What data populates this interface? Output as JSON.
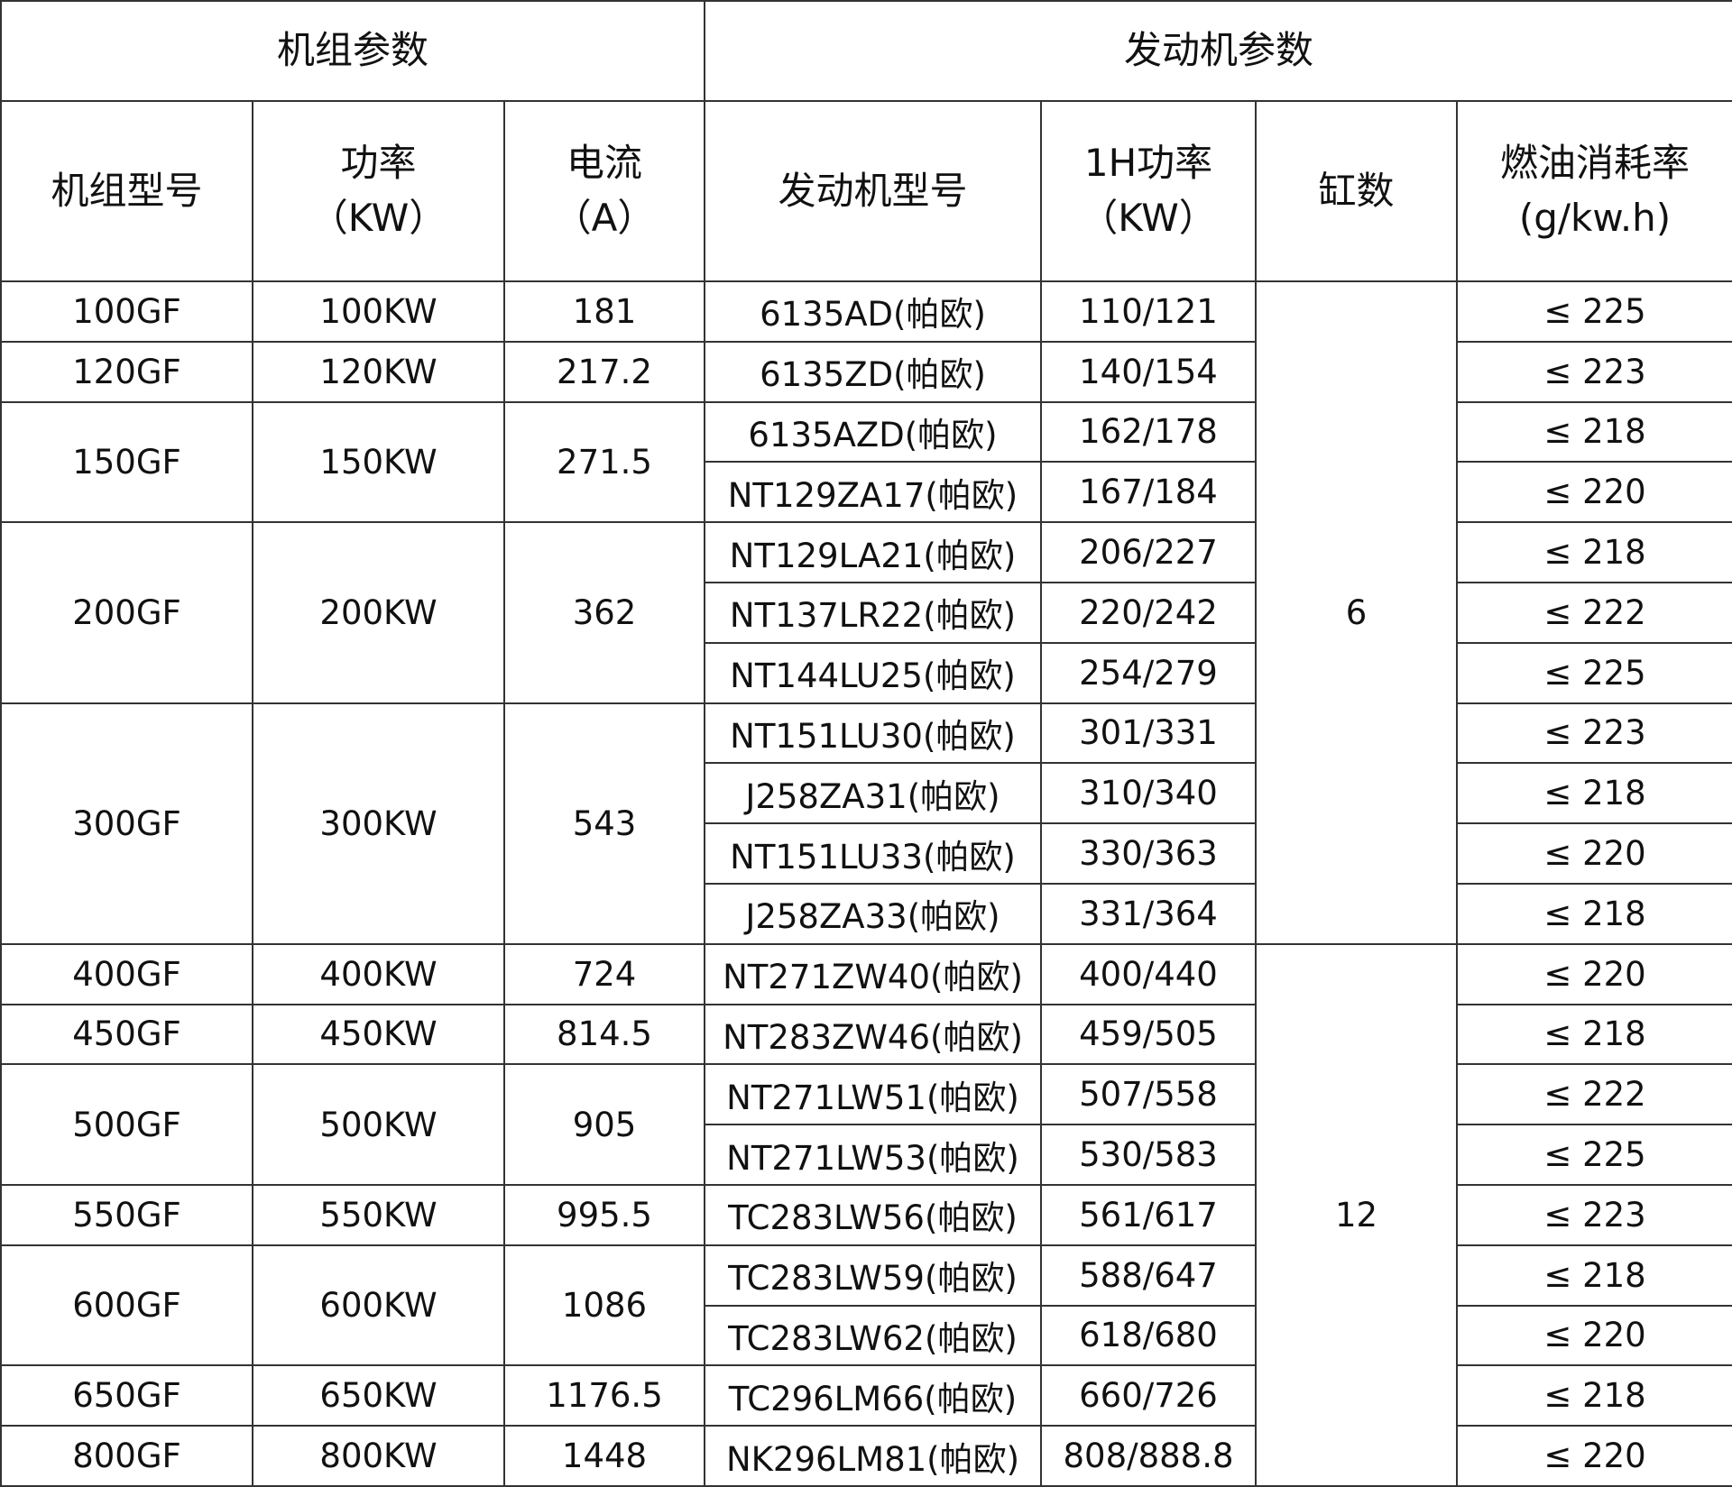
{
  "group_headers": {
    "unit_params": "机组参数",
    "engine_params": "发动机参数"
  },
  "columns": {
    "unit_model": "机组型号",
    "power": "功率\n（KW）",
    "current": "电流\n（A）",
    "engine_model": "发动机型号",
    "power_1h": "1H功率\n（KW）",
    "cylinders": "缸数",
    "fuel_rate": "燃油消耗率\n(g/kw.h)"
  },
  "units": [
    {
      "model": "100GF",
      "power": "100KW",
      "current": "181",
      "rows": 1
    },
    {
      "model": "120GF",
      "power": "120KW",
      "current": "217.2",
      "rows": 1
    },
    {
      "model": "150GF",
      "power": "150KW",
      "current": "271.5",
      "rows": 2
    },
    {
      "model": "200GF",
      "power": "200KW",
      "current": "362",
      "rows": 3
    },
    {
      "model": "300GF",
      "power": "300KW",
      "current": "543",
      "rows": 4
    },
    {
      "model": "400GF",
      "power": "400KW",
      "current": "724",
      "rows": 1
    },
    {
      "model": "450GF",
      "power": "450KW",
      "current": "814.5",
      "rows": 1
    },
    {
      "model": "500GF",
      "power": "500KW",
      "current": "905",
      "rows": 2
    },
    {
      "model": "550GF",
      "power": "550KW",
      "current": "995.5",
      "rows": 1
    },
    {
      "model": "600GF",
      "power": "600KW",
      "current": "1086",
      "rows": 2
    },
    {
      "model": "650GF",
      "power": "650KW",
      "current": "1176.5",
      "rows": 1
    },
    {
      "model": "800GF",
      "power": "800KW",
      "current": "1448",
      "rows": 1
    }
  ],
  "cylinder_groups": [
    {
      "value": "6",
      "rows": 11
    },
    {
      "value": "12",
      "rows": 9
    }
  ],
  "engines": [
    {
      "model": "6135AD(帕欧)",
      "power_1h": "110/121",
      "fuel": "≤ 225"
    },
    {
      "model": "6135ZD(帕欧)",
      "power_1h": "140/154",
      "fuel": "≤ 223"
    },
    {
      "model": "6135AZD(帕欧)",
      "power_1h": "162/178",
      "fuel": "≤ 218"
    },
    {
      "model": "NT129ZA17(帕欧)",
      "power_1h": "167/184",
      "fuel": "≤ 220"
    },
    {
      "model": "NT129LA21(帕欧)",
      "power_1h": "206/227",
      "fuel": "≤ 218"
    },
    {
      "model": "NT137LR22(帕欧)",
      "power_1h": "220/242",
      "fuel": "≤ 222"
    },
    {
      "model": "NT144LU25(帕欧)",
      "power_1h": "254/279",
      "fuel": "≤ 225"
    },
    {
      "model": "NT151LU30(帕欧)",
      "power_1h": "301/331",
      "fuel": "≤ 223"
    },
    {
      "model": "J258ZA31(帕欧)",
      "power_1h": "310/340",
      "fuel": "≤ 218"
    },
    {
      "model": "NT151LU33(帕欧)",
      "power_1h": "330/363",
      "fuel": "≤ 220"
    },
    {
      "model": "J258ZA33(帕欧)",
      "power_1h": "331/364",
      "fuel": "≤ 218"
    },
    {
      "model": "NT271ZW40(帕欧)",
      "power_1h": "400/440",
      "fuel": "≤ 220"
    },
    {
      "model": "NT283ZW46(帕欧)",
      "power_1h": "459/505",
      "fuel": "≤ 218"
    },
    {
      "model": "NT271LW51(帕欧)",
      "power_1h": "507/558",
      "fuel": "≤ 222"
    },
    {
      "model": "NT271LW53(帕欧)",
      "power_1h": "530/583",
      "fuel": "≤ 225"
    },
    {
      "model": "TC283LW56(帕欧)",
      "power_1h": "561/617",
      "fuel": "≤ 223"
    },
    {
      "model": "TC283LW59(帕欧)",
      "power_1h": "588/647",
      "fuel": "≤ 218"
    },
    {
      "model": "TC283LW62(帕欧)",
      "power_1h": "618/680",
      "fuel": "≤ 220"
    },
    {
      "model": "TC296LM66(帕欧)",
      "power_1h": "660/726",
      "fuel": "≤ 218"
    },
    {
      "model": "NK296LM81(帕欧)",
      "power_1h": "808/888.8",
      "fuel": "≤ 220"
    }
  ]
}
